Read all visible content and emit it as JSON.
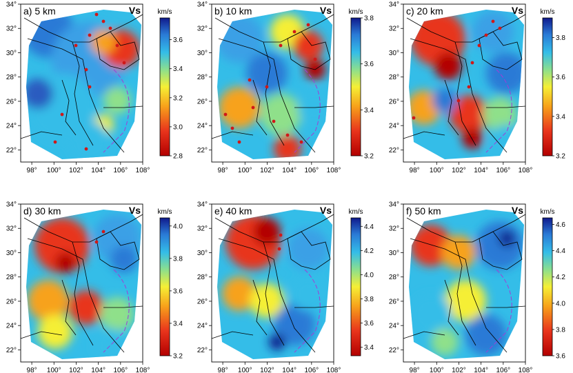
{
  "figure": {
    "lon_ticks": [
      "98°",
      "100°",
      "102°",
      "104°",
      "106°",
      "108°"
    ],
    "lat_ticks": [
      "22°",
      "24°",
      "26°",
      "28°",
      "30°",
      "32°",
      "34°"
    ],
    "panels": [
      {
        "title": "a) 5 km",
        "vs": "Vs",
        "unit": "km/s",
        "cb_ticks": [
          "2.8",
          "3.0",
          "3.2",
          "3.4",
          "3.6"
        ],
        "cb_min": 2.8,
        "cb_max": 3.75
      },
      {
        "title": "b) 10 km",
        "vs": "Vs",
        "unit": "km/s",
        "cb_ticks": [
          "3.2",
          "3.4",
          "3.6",
          "3.8"
        ],
        "cb_min": 3.2,
        "cb_max": 3.8
      },
      {
        "title": "c) 20 km",
        "vs": "Vs",
        "unit": "km/s",
        "cb_ticks": [
          "3.2",
          "3.4",
          "3.6",
          "3.8"
        ],
        "cb_min": 3.2,
        "cb_max": 3.9
      },
      {
        "title": "d) 30 km",
        "vs": "Vs",
        "unit": "km/s",
        "cb_ticks": [
          "3.2",
          "3.4",
          "3.6",
          "3.8",
          "4.0"
        ],
        "cb_min": 3.2,
        "cb_max": 4.05
      },
      {
        "title": "e) 40 km",
        "vs": "Vs",
        "unit": "km/s",
        "cb_ticks": [
          "3.4",
          "3.6",
          "3.8",
          "4.0",
          "4.2",
          "4.4"
        ],
        "cb_min": 3.33,
        "cb_max": 4.47
      },
      {
        "title": "f) 50 km",
        "vs": "Vs",
        "unit": "km/s",
        "cb_ticks": [
          "3.6",
          "3.8",
          "4.0",
          "4.2",
          "4.4",
          "4.6"
        ],
        "cb_min": 3.6,
        "cb_max": 4.65
      }
    ]
  },
  "chart_data": [
    {
      "type": "heatmap",
      "title": "a) 5 km",
      "colorbar_label": "km/s",
      "colorbar_range": [
        2.8,
        3.75
      ],
      "x_range": [
        97,
        108
      ],
      "y_range": [
        21,
        34
      ]
    },
    {
      "type": "heatmap",
      "title": "b) 10 km",
      "colorbar_label": "km/s",
      "colorbar_range": [
        3.2,
        3.8
      ],
      "x_range": [
        97,
        108
      ],
      "y_range": [
        21,
        34
      ]
    },
    {
      "type": "heatmap",
      "title": "c) 20 km",
      "colorbar_label": "km/s",
      "colorbar_range": [
        3.2,
        3.9
      ],
      "x_range": [
        97,
        108
      ],
      "y_range": [
        21,
        34
      ]
    },
    {
      "type": "heatmap",
      "title": "d) 30 km",
      "colorbar_label": "km/s",
      "colorbar_range": [
        3.2,
        4.05
      ],
      "x_range": [
        97,
        108
      ],
      "y_range": [
        21,
        34
      ]
    },
    {
      "type": "heatmap",
      "title": "e) 40 km",
      "colorbar_label": "km/s",
      "colorbar_range": [
        3.33,
        4.47
      ],
      "x_range": [
        97,
        108
      ],
      "y_range": [
        21,
        34
      ]
    },
    {
      "type": "heatmap",
      "title": "f) 50 km",
      "colorbar_label": "km/s",
      "colorbar_range": [
        3.6,
        4.65
      ],
      "x_range": [
        97,
        108
      ],
      "y_range": [
        21,
        34
      ]
    }
  ]
}
